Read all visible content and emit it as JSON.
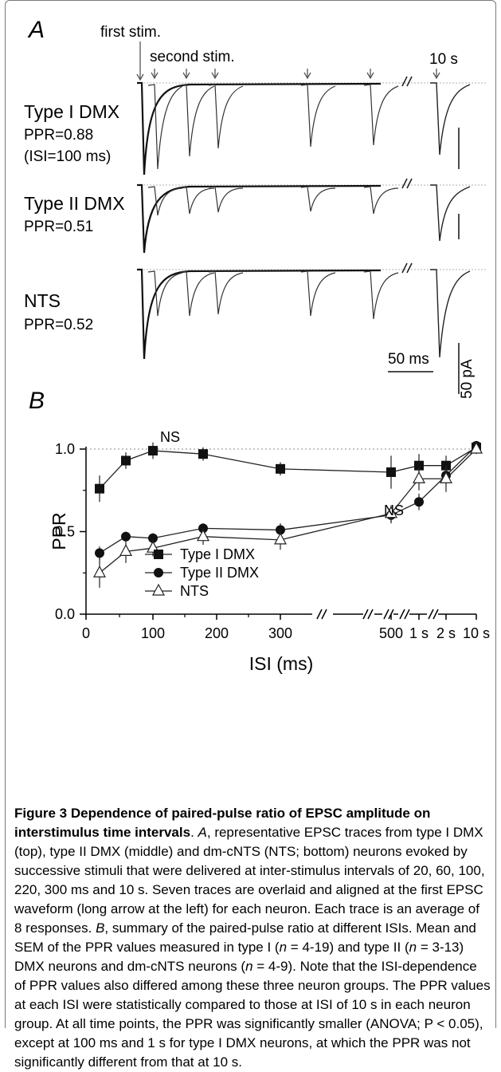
{
  "panelA": {
    "label": "A",
    "arrow_first": "first stim.",
    "arrow_second": "second stim.",
    "label_10s": "10 s",
    "scale_ms": "50 ms",
    "scale_pa": "50 pA",
    "rows": [
      {
        "name": "Type I DMX",
        "ppr": "PPR=0.88",
        "note": "(ISI=100 ms)"
      },
      {
        "name": "Type II DMX",
        "ppr": "PPR=0.51"
      },
      {
        "name": "NTS",
        "ppr": "PPR=0.52"
      }
    ]
  },
  "panelB": {
    "label": "B"
  },
  "chart_data": {
    "type": "line",
    "xlabel": "ISI (ms)",
    "ylabel": "PPR",
    "ylim": [
      0.0,
      1.0
    ],
    "x_tick_labels": [
      "0",
      "100",
      "200",
      "300",
      "500",
      "1 s",
      "2 s",
      "10 s"
    ],
    "y_tick_labels": [
      "0.0",
      "0.5",
      "1.0"
    ],
    "x": [
      "20 ms",
      "60 ms",
      "100 ms",
      "220 ms",
      "300 ms",
      "500 ms",
      "1 s",
      "2 s",
      "10 s"
    ],
    "reference_line": 1.0,
    "annotations": [
      "NS",
      "NS"
    ],
    "legend_position": "bottom-center",
    "series": [
      {
        "name": "Type I DMX",
        "marker": "square",
        "values": [
          0.76,
          0.93,
          0.99,
          0.97,
          0.88,
          0.86,
          0.9,
          0.9,
          1.01
        ],
        "sem": [
          0.08,
          0.05,
          0.05,
          0.04,
          0.04,
          0.1,
          0.07,
          0.06,
          0.03
        ]
      },
      {
        "name": "Type II DMX",
        "marker": "circle",
        "values": [
          0.37,
          0.47,
          0.46,
          0.52,
          0.51,
          0.6,
          0.68,
          0.84,
          1.02
        ],
        "sem": [
          0.04,
          0.03,
          0.03,
          0.03,
          0.04,
          0.05,
          0.05,
          0.05,
          0.02
        ]
      },
      {
        "name": "NTS",
        "marker": "triangle",
        "values": [
          0.25,
          0.38,
          0.4,
          0.47,
          0.45,
          0.61,
          0.82,
          0.82,
          1.0
        ],
        "sem": [
          0.09,
          0.07,
          0.05,
          0.05,
          0.06,
          0.05,
          0.07,
          0.08,
          0.03
        ]
      }
    ]
  },
  "caption": {
    "title": "Figure 3 Dependence of paired-pulse ratio of EPSC amplitude on interstimulus time intervals",
    "parts": [
      ". ",
      "A",
      ", representative EPSC traces from type I DMX (top), type II DMX (middle) and dm-cNTS (NTS; bottom) neurons evoked by successive stimuli that were delivered at inter-stimulus intervals of 20, 60, 100, 220, 300 ms and 10 s. Seven traces are overlaid and aligned at the first EPSC waveform (long arrow at the left) for each neuron. Each trace is an average of 8 responses. ",
      "B",
      ", summary of the paired-pulse ratio at different ISIs. Mean and SEM of the PPR values measured in type I (",
      "n",
      " = 4-19) and type II (",
      "n",
      " = 3-13) DMX neurons and dm-cNTS neurons (",
      "n",
      " = 4-9). Note that the ISI-dependence of PPR values also differed among these three neuron groups. The PPR values at each ISI were statistically compared to those at ISI of 10 s in each neuron group. At all time points, the PPR was significantly smaller (ANOVA; P < 0.05), except at 100 ms and 1 s for type I DMX neurons, at which the PPR was not significantly different from that at 10 s."
    ]
  }
}
